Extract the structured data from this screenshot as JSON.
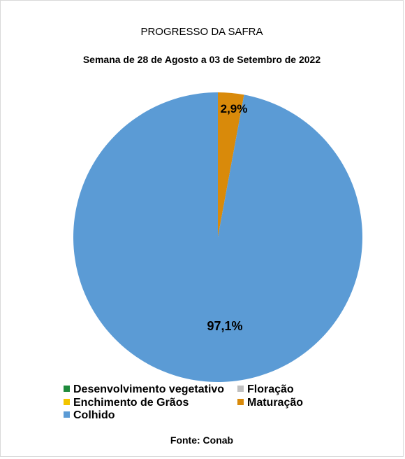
{
  "chart_data": {
    "type": "pie",
    "title": "PROGRESSO DA SAFRA",
    "subtitle": "Semana de 28 de Agosto a 03 de Setembro de 2022",
    "slices": [
      {
        "label": "Desenvolvimento vegetativo",
        "value": 0,
        "color": "#1e8a3c"
      },
      {
        "label": "Floração",
        "value": 0,
        "color": "#c0c0c0"
      },
      {
        "label": "Enchimento de Grãos",
        "value": 0,
        "color": "#f2c500"
      },
      {
        "label": "Maturação",
        "value": 2.9,
        "color": "#d98a0a",
        "data_label": "2,9%"
      },
      {
        "label": "Colhido",
        "value": 97.1,
        "color": "#5b9bd5",
        "data_label": "97,1%"
      }
    ],
    "legend_position": "bottom"
  },
  "source": "Fonte: Conab"
}
